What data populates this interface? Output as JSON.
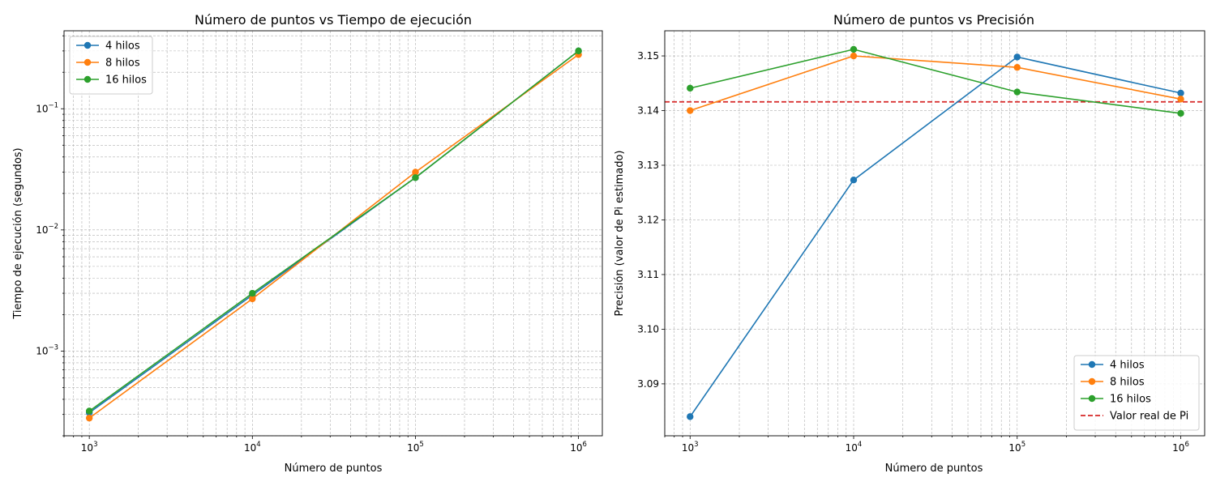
{
  "chart_data": [
    {
      "type": "line",
      "title": "Número de puntos vs Tiempo de ejecución",
      "xlabel": "Número de puntos",
      "ylabel": "Tiempo de ejecución (segundos)",
      "xscale": "log",
      "yscale": "log",
      "xlim": [
        700,
        1400000
      ],
      "ylim": [
        0.0002,
        0.44
      ],
      "x_ticks": [
        {
          "base": "10",
          "exp": "3"
        },
        {
          "base": "10",
          "exp": "4"
        },
        {
          "base": "10",
          "exp": "5"
        },
        {
          "base": "10",
          "exp": "6"
        }
      ],
      "y_ticks": [
        {
          "base": "10",
          "exp": "−3"
        },
        {
          "base": "10",
          "exp": "−2"
        },
        {
          "base": "10",
          "exp": "−1"
        }
      ],
      "grid": true,
      "legend_position": "upper-left",
      "x": [
        1000,
        10000,
        100000,
        1000000
      ],
      "series": [
        {
          "name": "4 hilos",
          "color": "#1f77b4",
          "values": [
            0.00031,
            0.0029,
            0.027,
            0.3
          ]
        },
        {
          "name": "8 hilos",
          "color": "#ff7f0e",
          "values": [
            0.00028,
            0.0027,
            0.03,
            0.28
          ]
        },
        {
          "name": "16 hilos",
          "color": "#2ca02c",
          "values": [
            0.00032,
            0.003,
            0.027,
            0.3
          ]
        }
      ]
    },
    {
      "type": "line",
      "title": "Número de puntos vs Precisión",
      "xlabel": "Número de puntos",
      "ylabel": "Precisión (valor de Pi estimado)",
      "xscale": "log",
      "yscale": "linear",
      "xlim": [
        700,
        1400000
      ],
      "ylim": [
        3.0805,
        3.1546
      ],
      "x_ticks": [
        {
          "base": "10",
          "exp": "3"
        },
        {
          "base": "10",
          "exp": "4"
        },
        {
          "base": "10",
          "exp": "5"
        },
        {
          "base": "10",
          "exp": "6"
        }
      ],
      "y_ticks": [
        "3.09",
        "3.10",
        "3.11",
        "3.12",
        "3.13",
        "3.14",
        "3.15"
      ],
      "grid": true,
      "legend_position": "lower-right",
      "x": [
        1000,
        10000,
        100000,
        1000000
      ],
      "series": [
        {
          "name": "4 hilos",
          "color": "#1f77b4",
          "values": [
            3.084,
            3.1273,
            3.1498,
            3.1432
          ]
        },
        {
          "name": "8 hilos",
          "color": "#ff7f0e",
          "values": [
            3.14,
            3.15,
            3.1479,
            3.1421
          ]
        },
        {
          "name": "16 hilos",
          "color": "#2ca02c",
          "values": [
            3.1441,
            3.1512,
            3.1434,
            3.1395
          ]
        }
      ],
      "reference_line": {
        "name": "Valor real de Pi",
        "value": 3.14159,
        "color": "#d62728",
        "style": "dashed"
      }
    }
  ]
}
